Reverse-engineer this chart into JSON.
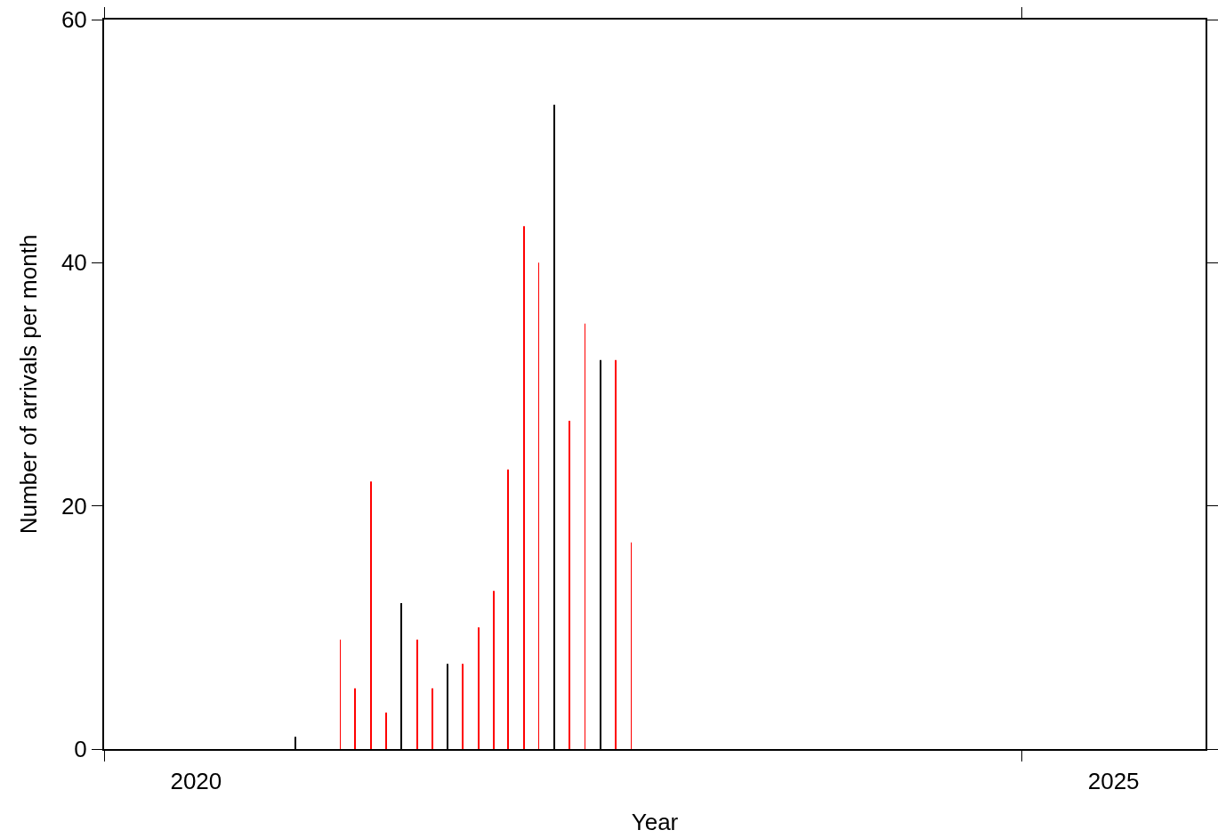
{
  "chart_data": {
    "type": "bar",
    "xlabel": "Year",
    "ylabel": "Number of arrivals per month",
    "x": [
      "2021-01-15",
      "2021-04-15",
      "2021-05-15",
      "2021-06-15",
      "2021-07-15",
      "2021-08-15",
      "2021-09-15",
      "2021-10-15",
      "2021-11-15",
      "2021-12-15",
      "2022-01-15",
      "2022-02-15",
      "2022-03-15",
      "2022-04-15",
      "2022-05-15",
      "2022-06-15",
      "2022-07-15",
      "2022-08-15",
      "2022-09-15",
      "2022-10-15",
      "2022-11-15"
    ],
    "values": [
      1,
      9,
      5,
      22,
      3,
      12,
      9,
      5,
      7,
      7,
      10,
      13,
      23,
      43,
      40,
      53,
      27,
      35,
      32,
      32,
      17
    ],
    "colors": [
      "#000000",
      "#ff0000",
      "#ff0000",
      "#ff0000",
      "#ff0000",
      "#000000",
      "#ff0000",
      "#ff0000",
      "#000000",
      "#ff0000",
      "#ff0000",
      "#ff0000",
      "#ff0000",
      "#ff0000",
      "#ff0000",
      "#000000",
      "#ff0000",
      "#ff0000",
      "#000000",
      "#ff0000",
      "#ff0000"
    ],
    "xlim": [
      "2020-01-01",
      "2026-01-01"
    ],
    "xticks": [
      {
        "value": "2020-01-01",
        "label": null
      },
      {
        "value": "2020-07-02",
        "label": "2020"
      },
      {
        "value": "2025-01-01",
        "label": null
      },
      {
        "value": "2025-07-02",
        "label": "2025"
      }
    ],
    "ylim": [
      0,
      60
    ],
    "yticks": [
      0,
      20,
      40,
      60
    ],
    "grid": false
  }
}
